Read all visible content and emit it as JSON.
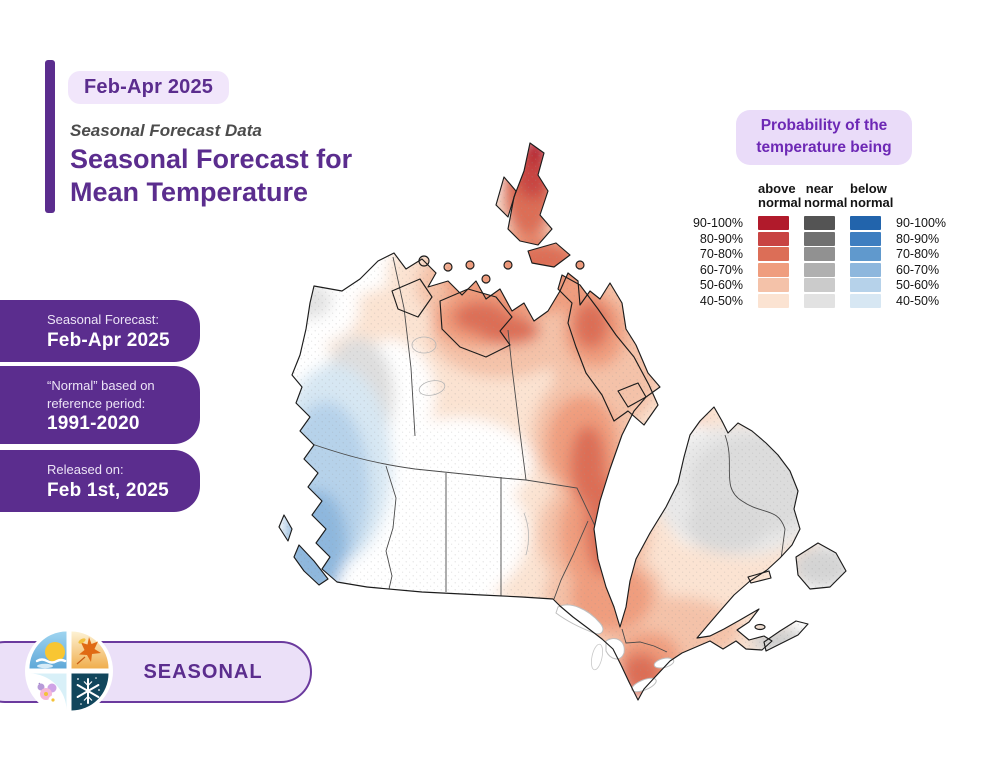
{
  "header": {
    "period_badge": "Feb-Apr 2025",
    "kicker": "Seasonal Forecast Data",
    "title_line1": "Seasonal Forecast for",
    "title_line2": "Mean Temperature"
  },
  "info_cards": [
    {
      "label": "Seasonal Forecast:",
      "value": "Feb-Apr 2025"
    },
    {
      "label": "“Normal” based on\nreference period:",
      "value": "1991-2020"
    },
    {
      "label": "Released on:",
      "value": "Feb 1st, 2025"
    }
  ],
  "legend": {
    "badge_line1": "Probability of the",
    "badge_line2": "temperature being",
    "row_labels": [
      "90-100%",
      "80-90%",
      "70-80%",
      "60-70%",
      "50-60%",
      "40-50%"
    ],
    "columns": [
      {
        "id": "above",
        "header": "above\nnormal",
        "colors": [
          "#b11a2b",
          "#c84443",
          "#dc6e57",
          "#ef9d7e",
          "#f4c2a9",
          "#fbe3d2"
        ]
      },
      {
        "id": "near",
        "header": "near\nnormal",
        "colors": [
          "#545454",
          "#707070",
          "#919191",
          "#b0b0b0",
          "#cbcbcb",
          "#e2e2e2"
        ]
      },
      {
        "id": "below",
        "header": "below\nnormal",
        "colors": [
          "#2264ac",
          "#3e7ec0",
          "#6099cd",
          "#8eb7dd",
          "#b6d2ea",
          "#d7e7f3"
        ]
      }
    ]
  },
  "footer": {
    "pill_label": "SEASONAL",
    "logo": "four-seasons-logo"
  },
  "map": {
    "region": "Canada",
    "kind": "seasonal temperature probability contour map",
    "readings": [
      {
        "area": "Northern Ellesmere Island",
        "category": "above normal",
        "probability": "80-100%"
      },
      {
        "area": "Arctic Archipelago",
        "category": "above normal",
        "probability": "60-80%"
      },
      {
        "area": "Central band (NWT through Manitoba to Ontario)",
        "category": "above normal",
        "probability": "50-70%"
      },
      {
        "area": "Southern Ontario / St. Lawrence",
        "category": "above normal",
        "probability": "60-80%"
      },
      {
        "area": "Northern Quebec and Maritimes fringe",
        "category": "above normal",
        "probability": "40-60%"
      },
      {
        "area": "Prairies and central Quebec",
        "category": "none dominant",
        "probability": "below 40% (white)"
      },
      {
        "area": "Yukon / NW NWT patch",
        "category": "near normal",
        "probability": "40-50%"
      },
      {
        "area": "Quebec-Labrador, Newfoundland, Nova Scotia",
        "category": "near normal",
        "probability": "40-50%"
      },
      {
        "area": "British Columbia coast and interior",
        "category": "below normal",
        "probability": "50-70%"
      }
    ]
  },
  "theme": {
    "purple": "#5b2d8e",
    "violet": "#6d28b5",
    "lavender": "#f1e6fb",
    "pill_bg": "#ebe0f8",
    "pill_border": "#6b3a9e"
  }
}
